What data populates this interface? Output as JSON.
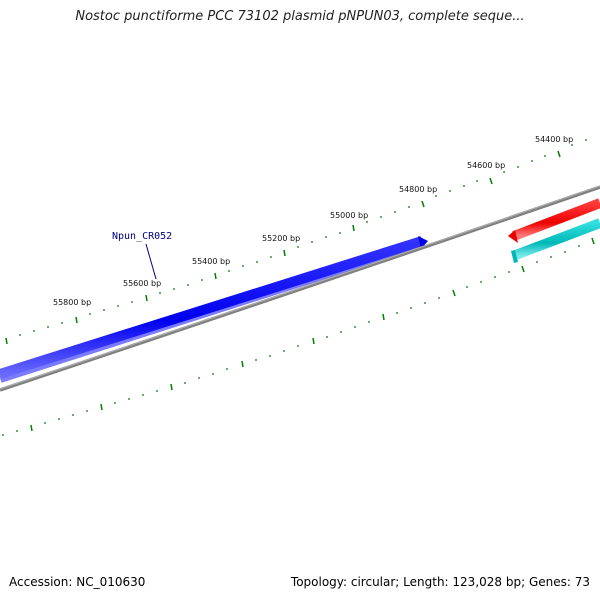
{
  "title": "Nostoc punctiforme PCC 73102 plasmid pNPUN03, complete seque...",
  "footer": {
    "accession": "Accession: NC_010630",
    "summary": "Topology: circular; Length: 123,028 bp; Genes: 73"
  },
  "ruler": {
    "unit": "bp",
    "tick_labels": [
      "54400 bp",
      "54600 bp",
      "54800 bp",
      "55000 bp",
      "55200 bp",
      "55400 bp",
      "55600 bp",
      "55800 bp"
    ]
  },
  "features": [
    {
      "name": "Npun_CR052",
      "strand": "forward",
      "color": "#0000ff",
      "label": "Npun_CR052"
    },
    {
      "name": "reverse-gene",
      "strand": "reverse",
      "color": "#ff0000",
      "label": ""
    },
    {
      "name": "other-feature",
      "strand": "reverse",
      "color": "#00c0c0",
      "label": ""
    }
  ],
  "colors": {
    "backbone": "#808080",
    "ticks": "#008000",
    "forward_feature": "#0000ff",
    "reverse_feature": "#ff0000",
    "other_feature": "#00c0c0"
  }
}
